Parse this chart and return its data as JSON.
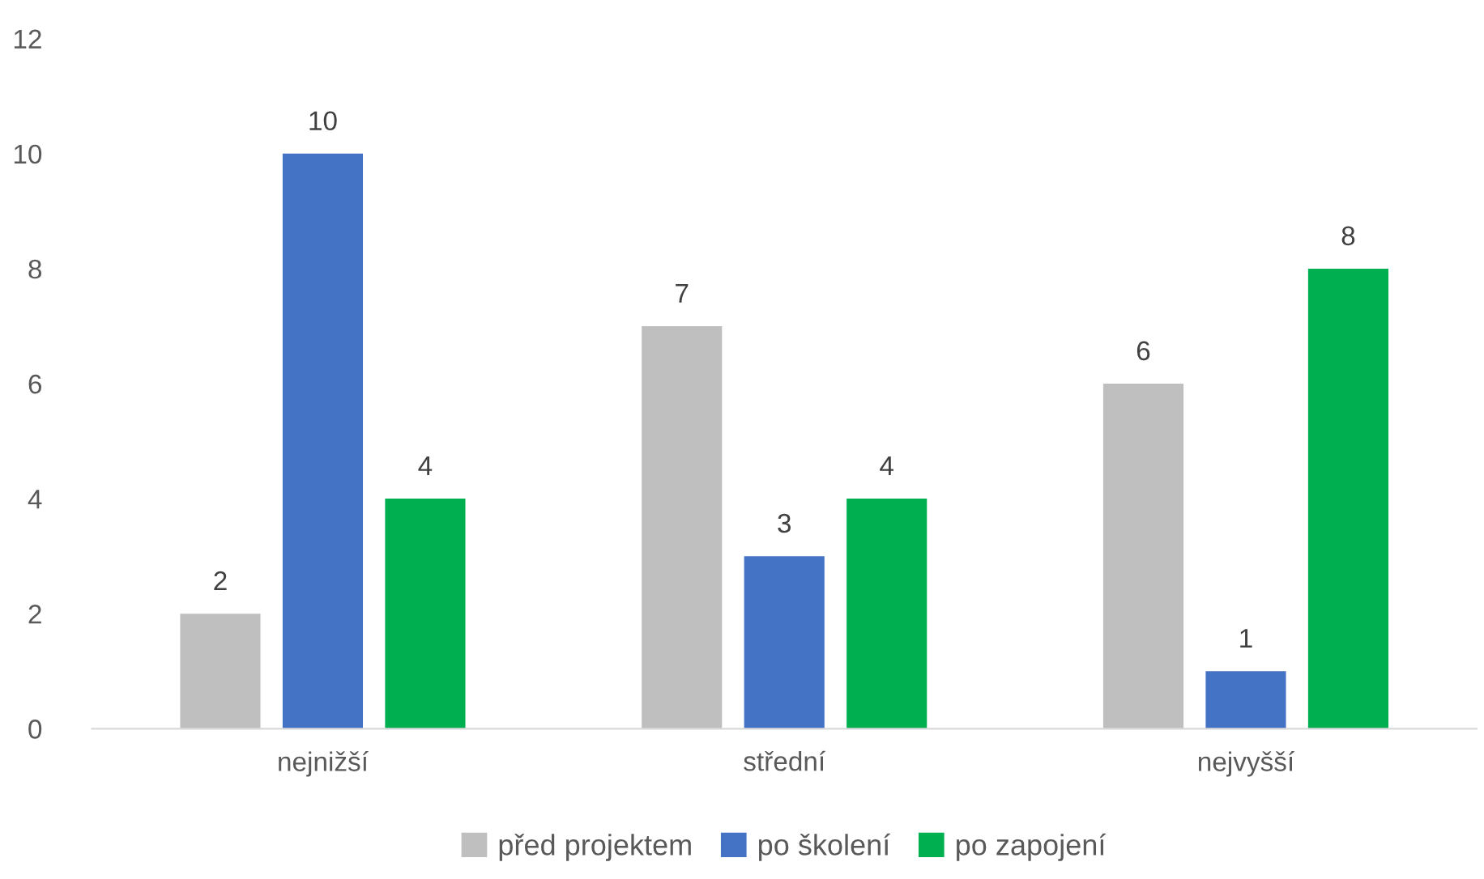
{
  "chart_data": {
    "type": "bar",
    "categories": [
      "nejnižší",
      "střední",
      "nejvyšší"
    ],
    "series": [
      {
        "name": "před projektem",
        "color": "#bfbfbf",
        "values": [
          2,
          7,
          6
        ]
      },
      {
        "name": "po školení",
        "color": "#4472c4",
        "values": [
          10,
          3,
          1
        ]
      },
      {
        "name": "po zapojení",
        "color": "#00b050",
        "values": [
          4,
          4,
          8
        ]
      }
    ],
    "ylim": [
      0,
      12
    ],
    "yticks": [
      0,
      2,
      4,
      6,
      8,
      10,
      12
    ],
    "grid": false,
    "legend": "bottom",
    "data_labels": true
  }
}
